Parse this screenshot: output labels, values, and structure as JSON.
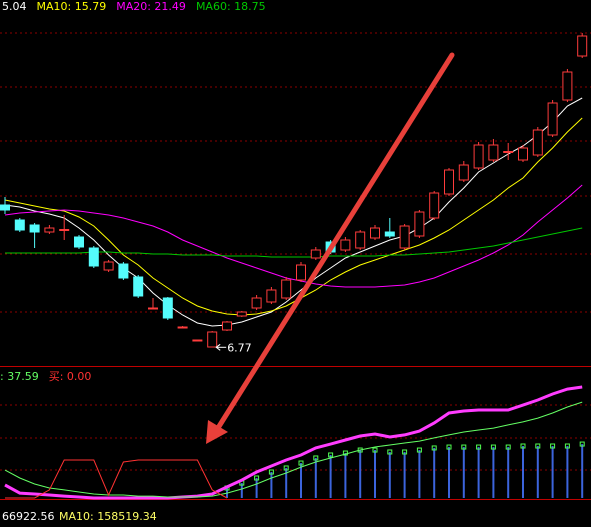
{
  "chart_data": [
    {
      "type": "candlestick",
      "up_color": "#ff3c3c",
      "down_color": "#54fcfc",
      "open": [
        21.0,
        19.5,
        19.0,
        18.3,
        18.5,
        17.8,
        16.7,
        14.5,
        15.1,
        13.8,
        10.7,
        11.7,
        8.8,
        7.5,
        6.8,
        8.5,
        9.9,
        10.7,
        11.3,
        11.7,
        13.5,
        15.7,
        17.3,
        16.5,
        16.7,
        17.7,
        18.3,
        16.7,
        17.9,
        19.7,
        22.1,
        23.5,
        24.7,
        25.5,
        26.3,
        25.5,
        26.0,
        28.0,
        31.5,
        35.9
      ],
      "close": [
        20.5,
        18.5,
        18.3,
        18.7,
        18.55,
        16.8,
        14.9,
        15.3,
        13.7,
        11.9,
        10.7,
        9.7,
        8.8,
        7.5,
        8.3,
        9.3,
        10.3,
        11.7,
        12.5,
        13.5,
        15.0,
        16.5,
        16.3,
        17.5,
        18.3,
        18.7,
        17.9,
        18.9,
        20.3,
        22.2,
        24.5,
        25.0,
        27.0,
        27.0,
        26.35,
        26.7,
        28.5,
        31.2,
        34.3,
        37.9
      ],
      "low": [
        20.1,
        18.3,
        16.7,
        18.1,
        17.5,
        16.6,
        14.7,
        14.3,
        13.5,
        11.7,
        10.7,
        9.5,
        8.7,
        7.5,
        6.77,
        8.4,
        9.8,
        10.5,
        11.1,
        11.5,
        13.3,
        15.5,
        16.1,
        16.3,
        16.5,
        17.5,
        17.7,
        16.5,
        17.7,
        19.5,
        21.9,
        23.3,
        24.5,
        25.3,
        25.5,
        25.3,
        25.8,
        27.8,
        31.3,
        35.7
      ],
      "high": [
        21.8,
        19.7,
        19.2,
        19.0,
        20.0,
        18.0,
        16.9,
        15.5,
        15.3,
        14.0,
        11.7,
        11.8,
        8.9,
        7.5,
        8.4,
        9.4,
        10.4,
        12.0,
        12.8,
        13.8,
        15.3,
        16.8,
        17.5,
        17.8,
        18.5,
        19.0,
        19.7,
        19.1,
        20.5,
        22.4,
        24.7,
        25.4,
        27.3,
        27.6,
        27.2,
        27.0,
        28.8,
        31.5,
        34.6,
        38.2
      ],
      "series": [
        {
          "name": "5.04",
          "color": "#ffffff",
          "values": [
            21.0,
            20.8,
            20.4,
            20.1,
            19.7,
            18.7,
            17.5,
            16.0,
            14.7,
            13.7,
            12.2,
            11.0,
            10.0,
            9.2,
            8.9,
            9.0,
            9.3,
            9.8,
            10.3,
            11.3,
            12.5,
            13.7,
            14.7,
            15.7,
            16.3,
            16.9,
            17.5,
            17.9,
            18.7,
            19.7,
            21.3,
            22.7,
            24.3,
            25.2,
            26.1,
            26.9,
            28.0,
            29.3,
            30.9,
            31.7
          ]
        },
        {
          "name": "MA10: 15.79",
          "color": "#ffff00",
          "values": [
            21.5,
            21.2,
            20.9,
            20.6,
            20.4,
            19.8,
            18.9,
            17.5,
            16.0,
            15.0,
            13.7,
            12.7,
            11.7,
            10.9,
            10.4,
            10.1,
            10.0,
            10.1,
            10.4,
            10.9,
            11.7,
            12.5,
            13.5,
            14.3,
            15.0,
            15.5,
            16.0,
            16.5,
            17.0,
            17.7,
            18.5,
            19.5,
            20.5,
            21.5,
            22.7,
            23.7,
            25.3,
            26.7,
            28.3,
            29.7
          ]
        },
        {
          "name": "MA20: 21.49",
          "color": "#ff00ff",
          "values": [
            20.0,
            20.2,
            20.3,
            20.4,
            20.5,
            20.4,
            20.2,
            20.0,
            19.7,
            19.3,
            18.9,
            18.3,
            17.5,
            16.9,
            16.3,
            15.7,
            15.2,
            14.7,
            14.2,
            13.7,
            13.4,
            13.1,
            12.9,
            12.8,
            12.8,
            12.8,
            12.9,
            13.0,
            13.3,
            13.7,
            14.3,
            14.9,
            15.5,
            16.2,
            17.0,
            18.0,
            19.3,
            20.5,
            21.7,
            23.0
          ]
        },
        {
          "name": "MA60: 18.75",
          "color": "#00c800",
          "values": [
            16.2,
            16.2,
            16.2,
            16.2,
            16.2,
            16.2,
            16.3,
            16.3,
            16.2,
            16.2,
            16.1,
            16.1,
            16.0,
            16.0,
            16.0,
            15.9,
            15.9,
            15.9,
            15.8,
            15.8,
            15.8,
            15.8,
            15.9,
            15.9,
            15.9,
            15.9,
            16.0,
            16.0,
            16.1,
            16.2,
            16.3,
            16.5,
            16.7,
            16.9,
            17.2,
            17.5,
            17.8,
            18.1,
            18.4,
            18.7
          ]
        }
      ],
      "low_label": "6.77",
      "ylim": [
        5,
        41.5
      ]
    },
    {
      "type": "indicator",
      "bar_color": "#3c64dc",
      "cap_color": "#50ff50",
      "bars": [
        null,
        null,
        null,
        null,
        null,
        null,
        null,
        null,
        null,
        null,
        null,
        null,
        null,
        null,
        null,
        7.7,
        11.5,
        15.4,
        20.0,
        23.1,
        26.9,
        30.8,
        33.1,
        34.6,
        36.9,
        36.9,
        35.4,
        35.4,
        36.9,
        38.5,
        39.2,
        39.2,
        39.2,
        39.2,
        39.2,
        40.0,
        40.0,
        40.0,
        40.0,
        41.5
      ],
      "series": [
        {
          "color": "#ff3cff",
          "width": 3,
          "values": [
            10.0,
            3.8,
            3.1,
            2.3,
            1.5,
            0.8,
            0,
            0,
            0,
            0,
            0,
            0,
            0.8,
            1.5,
            3.1,
            8.5,
            13.8,
            20.0,
            24.6,
            29.2,
            33.1,
            38.5,
            41.5,
            44.6,
            47.7,
            49.2,
            46.9,
            48.5,
            51.5,
            57.7,
            65.4,
            66.9,
            67.7,
            67.7,
            67.7,
            71.5,
            75.4,
            80.0,
            83.8,
            85.4
          ]
        },
        {
          "name": ": 37.59",
          "color": "#64ff64",
          "width": 1,
          "values": [
            21.5,
            15.4,
            10.8,
            7.7,
            6.2,
            4.6,
            3.1,
            2.3,
            2.3,
            1.5,
            1.5,
            0.8,
            0.8,
            0.8,
            1.5,
            3.8,
            6.9,
            10.8,
            15.4,
            19.2,
            23.8,
            27.7,
            30.8,
            33.8,
            36.9,
            39.2,
            40.8,
            42.3,
            43.8,
            46.2,
            48.5,
            50.8,
            52.3,
            53.8,
            56.2,
            58.5,
            61.5,
            65.4,
            70.0,
            73.8
          ]
        },
        {
          "name": "买: 0.00",
          "color": "#ff3232",
          "width": 1,
          "values": [
            0,
            0,
            0,
            6.2,
            29.2,
            29.2,
            29.2,
            2.3,
            27.7,
            29.2,
            29.2,
            29.2,
            29.2,
            29.2,
            6.2,
            0,
            null,
            null,
            null,
            null,
            null,
            null,
            null,
            null,
            null,
            null,
            null,
            null,
            null,
            null,
            null,
            null,
            null,
            null,
            null,
            null,
            null,
            null,
            null,
            null
          ]
        }
      ],
      "ylim": [
        0,
        100
      ]
    }
  ],
  "volume_panel": {
    "value_text": "66922.56",
    "ma_text": "MA10: 158519.34"
  }
}
